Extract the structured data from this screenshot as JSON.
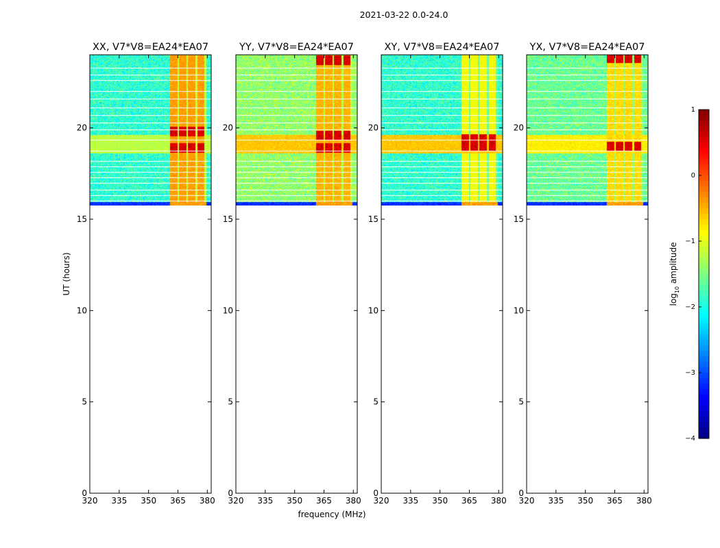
{
  "figure": {
    "suptitle": "2021-03-22 0.0-24.0",
    "xlabel": "frequency (MHz)",
    "ylabel": "UT (hours)"
  },
  "chart_data": {
    "type": "heatmap",
    "xlim": [
      320,
      382
    ],
    "ylim": [
      0,
      24
    ],
    "xticks": [
      320,
      335,
      350,
      365,
      380
    ],
    "yticks": [
      0,
      5,
      10,
      15,
      20
    ],
    "data_time_range_hours": [
      15.75,
      24.0
    ],
    "rfi_band_mhz": [
      361,
      379.5
    ],
    "panels": [
      {
        "title": "XX, V7*V8=EA24*EA07",
        "base_level": -1.9,
        "band_level": -0.4,
        "peak_hours": [
          18.9,
          19.8
        ],
        "time_band_level": -1.2
      },
      {
        "title": "YY, V7*V8=EA24*EA07",
        "base_level": -1.4,
        "band_level": -0.5,
        "peak_hours": [
          18.9,
          19.6,
          23.7
        ],
        "time_band_level": -0.6
      },
      {
        "title": "XY, V7*V8=EA24*EA07",
        "base_level": -1.9,
        "band_level": -0.9,
        "peak_hours": [
          19.0,
          19.4
        ],
        "time_band_level": -0.6
      },
      {
        "title": "YX, V7*V8=EA24*EA07",
        "base_level": -1.6,
        "band_level": -0.7,
        "peak_hours": [
          19.0,
          23.8
        ],
        "time_band_level": -0.8
      }
    ],
    "colorbar": {
      "label_prefix": "log",
      "label_sub": "10",
      "label_suffix": " amplitude",
      "range": [
        -4,
        1
      ],
      "ticks": [
        1,
        0,
        -1,
        -2,
        -3,
        -4
      ],
      "tick_labels": [
        "1",
        "0",
        "−1",
        "−2",
        "−3",
        "−4"
      ],
      "colormap": "jet"
    }
  }
}
